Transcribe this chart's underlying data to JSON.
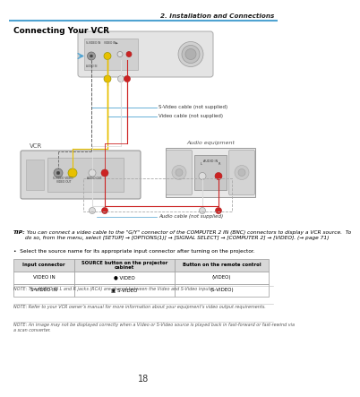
{
  "page_header_right": "2. Installation and Connections",
  "section_title": "Connecting Your VCR",
  "label_svideo_cable": "S-Video cable (not supplied)",
  "label_video_cable": "Video cable (not supplied)",
  "label_audio_cable": "Audio cable (not supplied)",
  "label_vcr": "VCR",
  "label_audio_eq": "Audio equipment",
  "tip_bold": "TIP:",
  "tip_text": " You can connect a video cable to the \"G/Y\" connector of the COMPUTER 2 IN (BNC) connectors to display a VCR source.  To\ndo so, from the menu, select [SETUP] → [OPTIONS(1)] → [SIGNAL SELECT] → [COMPUTER 2] → [VIDEO]. (→ page 71)",
  "bullet_text": "•  Select the source name for its appropriate input connector after turning on the projector.",
  "table_headers": [
    "Input connector",
    "SOURCE button on the projector\ncabinet",
    "Button on the remote control"
  ],
  "table_row1": [
    "VIDEO IN",
    "● VIDEO",
    "(VIDEO)"
  ],
  "table_row2": [
    "S-VIDEO IN",
    "▣ S-VIDEO",
    "(S-VIDEO)"
  ],
  "note1": "NOTE: The AUDIO IN L and R jacks (RCA) are shared between the Video and S-Video inputs.",
  "note2": "NOTE: Refer to your VCR owner’s manual for more information about your equipment’s video output requirements.",
  "note3": "NOTE: An image may not be displayed correctly when a Video or S-Video source is played back in fast-forward or fast-rewind via\na scan converter.",
  "page_number": "18",
  "bg_color": "#ffffff",
  "header_line_color": "#4fa3d1",
  "table_border_color": "#999999",
  "table_header_bg": "#d8d8d8",
  "connector_blue": "#4fa3d1",
  "blue_line": "#3a9fd1",
  "yellow": "#e8c000",
  "white_conn": "#dddddd",
  "red_conn": "#cc2222",
  "gray_conn": "#888888",
  "vcr_bg": "#d8d8d8",
  "proj_bg": "#e0e0e0",
  "audio_bg": "#e8e8e8"
}
